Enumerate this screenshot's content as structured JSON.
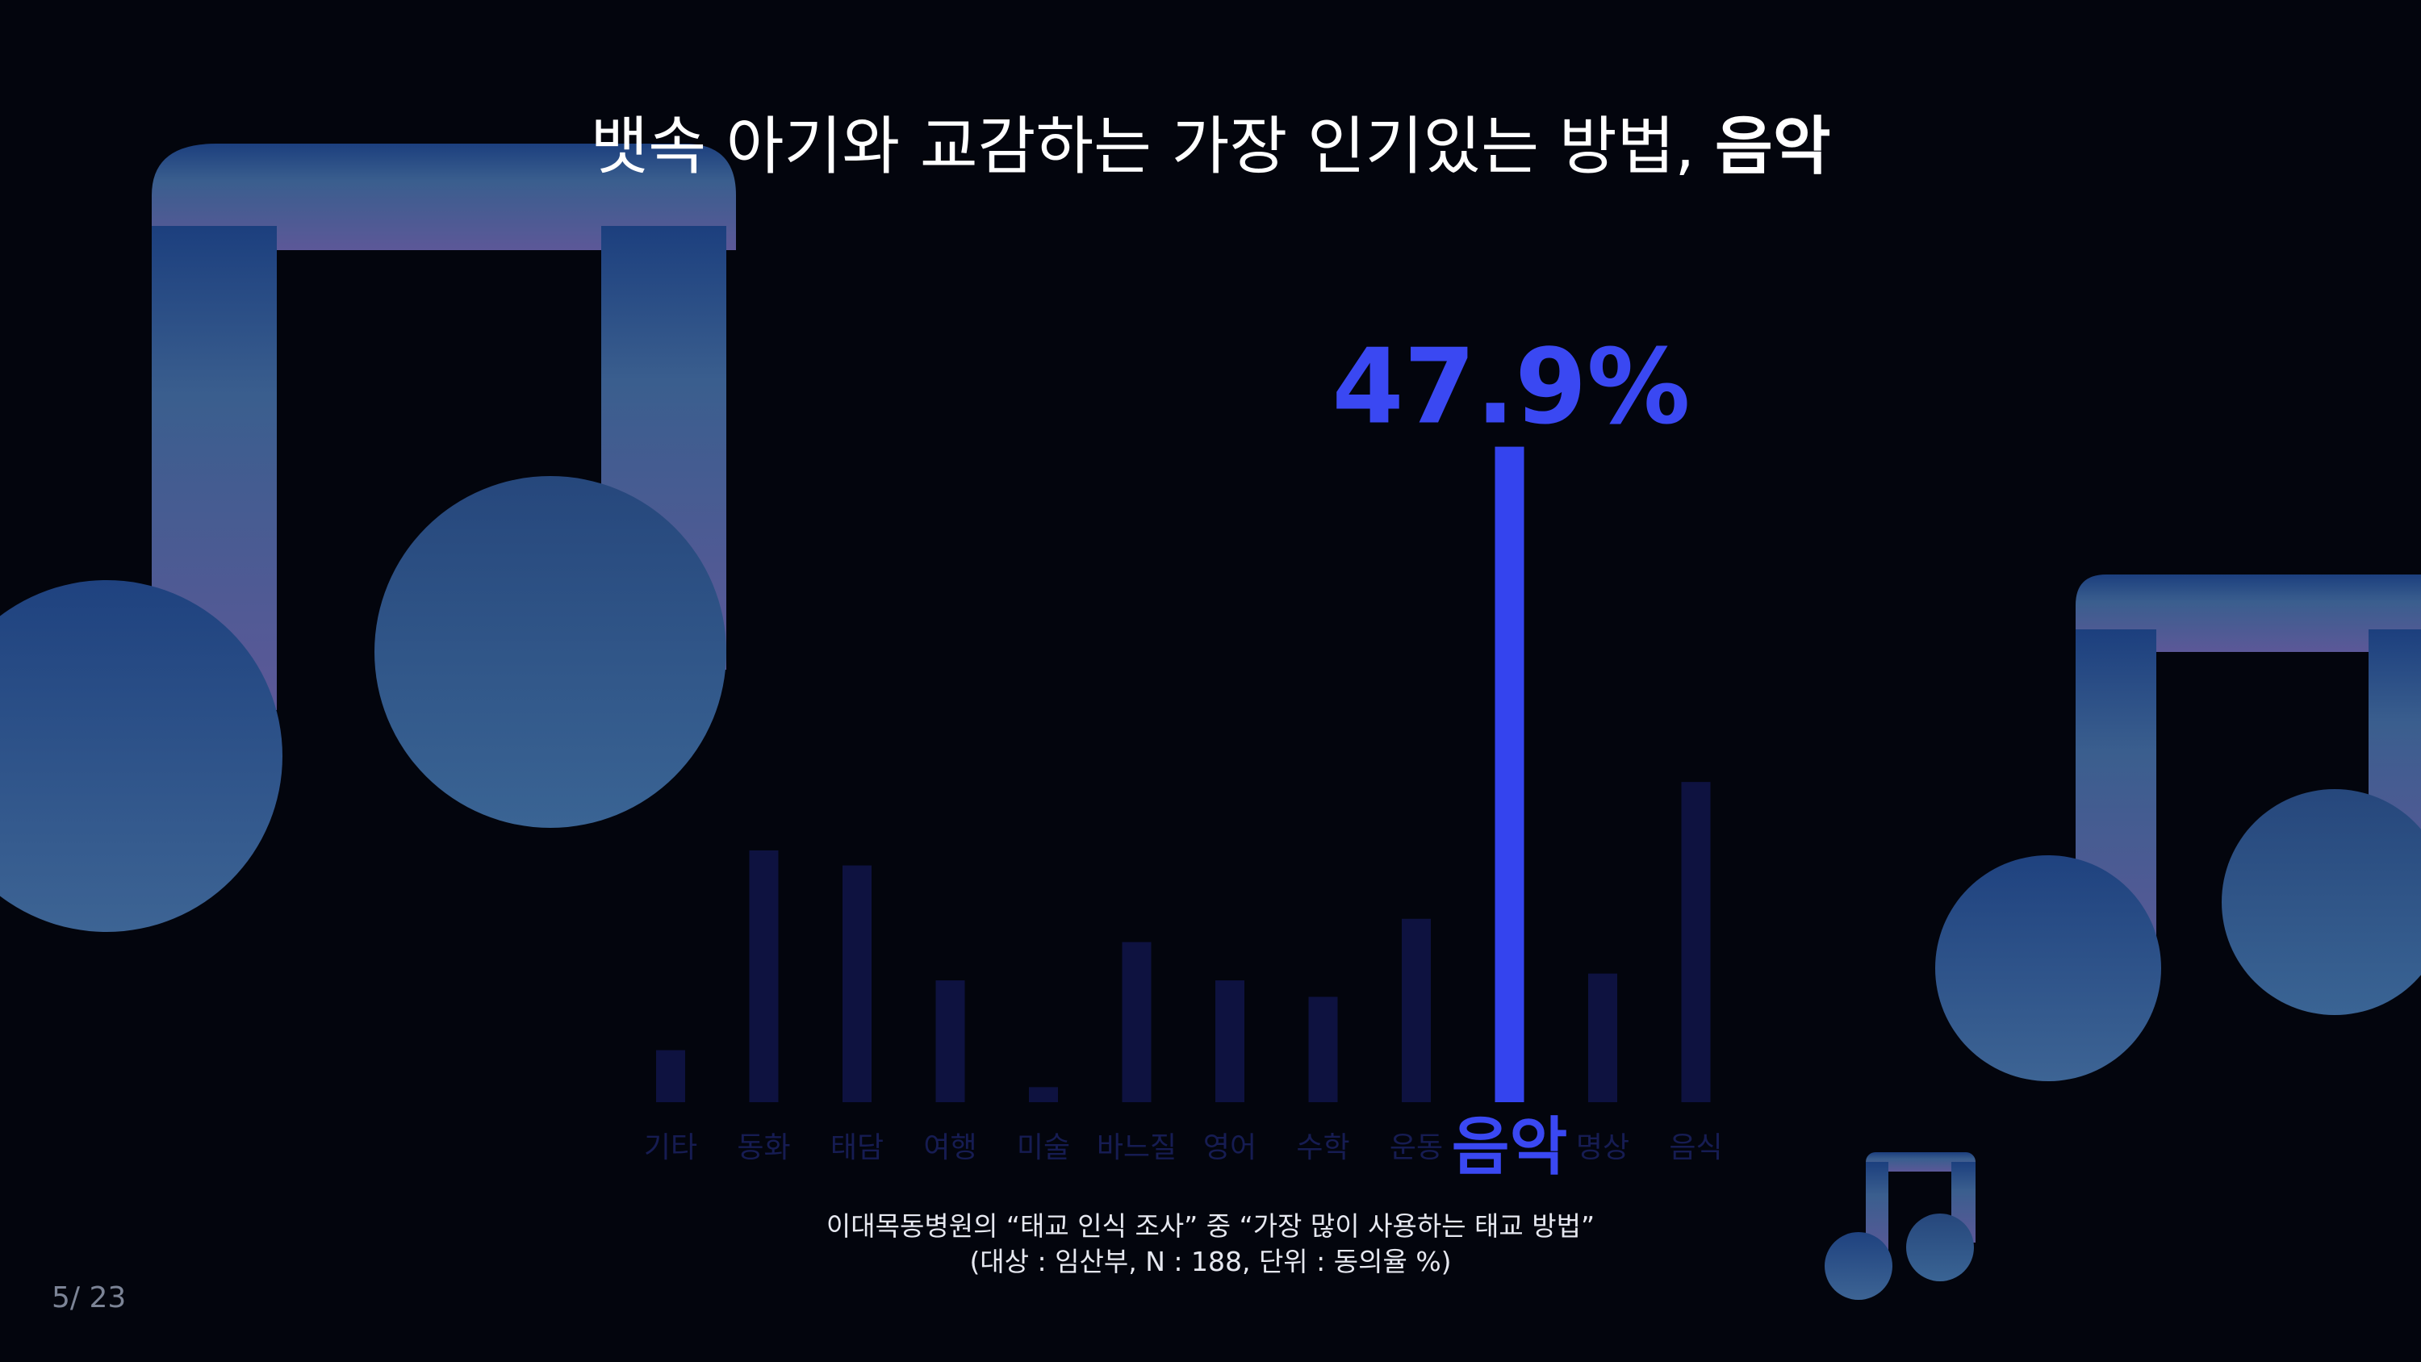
{
  "title": {
    "prefix": "뱃속 아기와 교감하는 가장 인기있는 방법,",
    "emphasis": "음악"
  },
  "chart_data": {
    "type": "bar",
    "categories": [
      "기타",
      "동화",
      "태담",
      "여행",
      "미술",
      "바느질",
      "영어",
      "수학",
      "운동",
      "음악",
      "명상",
      "음식"
    ],
    "values": [
      3.8,
      18.4,
      17.3,
      8.9,
      1.1,
      11.7,
      8.9,
      7.7,
      13.4,
      47.9,
      9.4,
      23.4
    ],
    "highlight_category": "음악",
    "highlight_label": "47.9%",
    "title": "",
    "xlabel": "",
    "ylabel": "",
    "ylim": [
      0,
      50
    ],
    "grid": false,
    "legend": "none"
  },
  "caption": {
    "line1": "이대목동병원의 “태교 인식 조사” 중 “가장 많이 사용하는 태교 방법”",
    "line2": "(대상 : 임산부, N : 188, 단위 : 동의율 %)"
  },
  "page_number": "5/ 23",
  "colors": {
    "background": "#03050d",
    "bar": "#0e1240",
    "highlight_bar": "#3444ee",
    "category_label": "#161c52",
    "highlight_label": "#3a48f2",
    "note_top": "#1c3f7e",
    "note_bottom": "#565897"
  },
  "decorations": {
    "icons": [
      "music-note-icon",
      "music-note-icon",
      "music-note-icon"
    ]
  }
}
